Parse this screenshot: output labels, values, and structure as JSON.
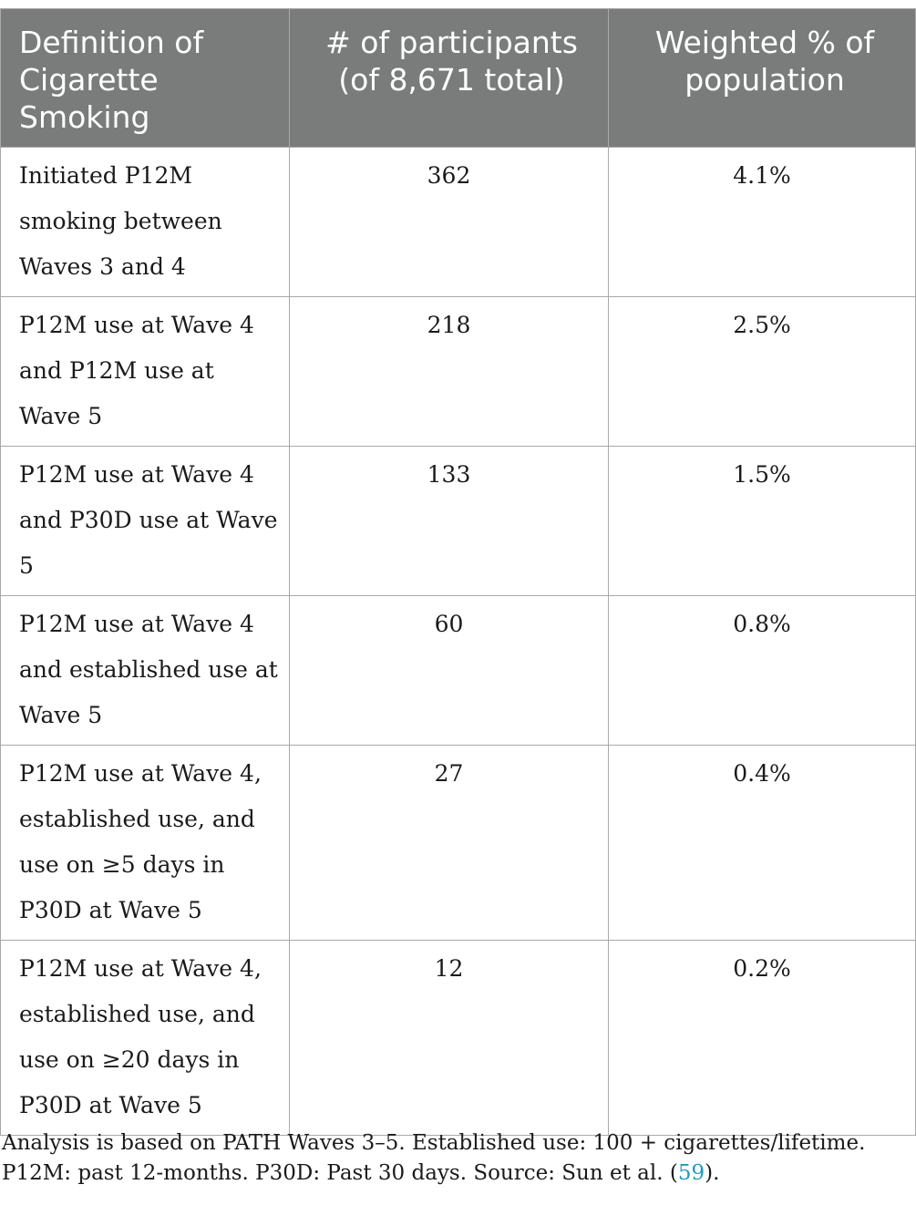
{
  "table": {
    "headers": [
      "Definition of Cigarette Smoking",
      "# of participants (of 8,671 total)",
      "Weighted % of population"
    ],
    "rows": [
      {
        "definition": "Initiated P12M smoking between Waves 3 and 4",
        "participants": "362",
        "weighted_percent": "4.1%"
      },
      {
        "definition": "P12M use at Wave 4 and P12M use at Wave 5",
        "participants": "218",
        "weighted_percent": "2.5%"
      },
      {
        "definition": "P12M use at Wave 4 and P30D use at Wave 5",
        "participants": "133",
        "weighted_percent": "1.5%"
      },
      {
        "definition": "P12M use at Wave 4 and established use at Wave 5",
        "participants": "60",
        "weighted_percent": "0.8%"
      },
      {
        "definition": "P12M use at Wave 4, established use, and use on ≥5 days in P30D at Wave 5",
        "participants": "27",
        "weighted_percent": "0.4%"
      },
      {
        "definition": "P12M use at Wave 4, established use, and use on ≥20 days in P30D at Wave 5",
        "participants": "12",
        "weighted_percent": "0.2%"
      }
    ]
  },
  "footnote": {
    "text_before": "Analysis is based on PATH Waves 3–5. Established use: 100 + cigarettes/lifetime. P12M: past 12-months. P30D: Past 30 days. Source: Sun et al. (",
    "citation": "59",
    "text_after": ")."
  },
  "colors": {
    "header_background": "#7a7c7b",
    "header_text": "#ffffff",
    "border": "#a9a9a9",
    "citation_link": "#1a9bc4"
  }
}
